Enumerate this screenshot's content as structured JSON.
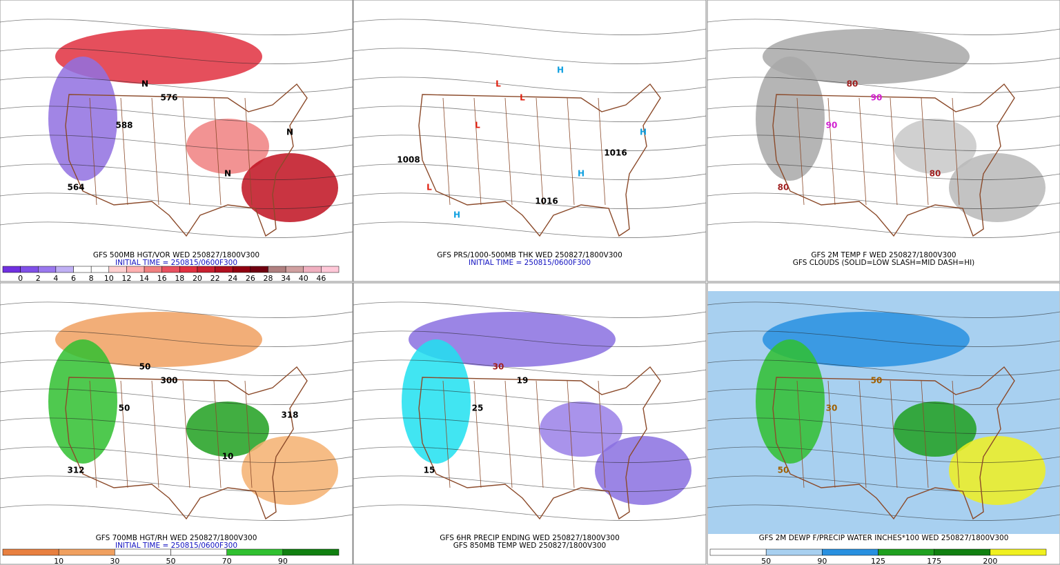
{
  "panels": [
    {
      "caption": [
        "GFS 500MB HGT/VOR WED 250827/1800V300",
        "INITIAL TIME = 250815/0600F300"
      ],
      "caption_colors": [
        "#000000",
        "#1010c0"
      ],
      "background": "#ffffff",
      "blobs": [
        "#e03040",
        "#f08080",
        "#9070e0",
        "#c01020"
      ],
      "map_labels": [
        {
          "text": "564",
          "color": "#000000"
        },
        {
          "text": "576",
          "color": "#000000"
        },
        {
          "text": "588",
          "color": "#000000"
        },
        {
          "text": "N",
          "color": "#000000"
        },
        {
          "text": "N",
          "color": "#000000"
        },
        {
          "text": "N",
          "color": "#000000"
        }
      ],
      "colorbar": {
        "labels": [
          0,
          2,
          4,
          6,
          8,
          10,
          12,
          14,
          16,
          18,
          20,
          22,
          24,
          26,
          28,
          34,
          40,
          46
        ],
        "colors": [
          "#7030e0",
          "#8050e8",
          "#9a78ee",
          "#c0b0f4",
          "#ffffff",
          "#ffffff",
          "#ffd0d0",
          "#ffb0b0",
          "#f08080",
          "#e85060",
          "#e03040",
          "#c82030",
          "#b01020",
          "#900010",
          "#700010",
          "#b08080",
          "#d0a0a0",
          "#f0b0c0",
          "#ffc8d8"
        ]
      }
    },
    {
      "caption": [
        "GFS PRS/1000-500MB THK WED 250827/1800V300",
        "INITIAL TIME = 250815/0600F300"
      ],
      "caption_colors": [
        "#000000",
        "#1010c0"
      ],
      "background": "#ffffff",
      "blobs": [],
      "map_labels": [
        {
          "text": "L",
          "color": "#e02010"
        },
        {
          "text": "L",
          "color": "#e02010"
        },
        {
          "text": "L",
          "color": "#e02010"
        },
        {
          "text": "L",
          "color": "#e02010"
        },
        {
          "text": "H",
          "color": "#10a0e0"
        },
        {
          "text": "H",
          "color": "#10a0e0"
        },
        {
          "text": "H",
          "color": "#10a0e0"
        },
        {
          "text": "H",
          "color": "#10a0e0"
        },
        {
          "text": "1008",
          "color": "#000000"
        },
        {
          "text": "1016",
          "color": "#000000"
        },
        {
          "text": "1016",
          "color": "#000000"
        }
      ]
    },
    {
      "caption": [
        "GFS 2M TEMP F WED 250827/1800V300",
        "GFS CLOUDS (SOLID=LOW SLASH=MID DASH=HI)"
      ],
      "caption_colors": [
        "#000000",
        "#000000"
      ],
      "background": "#ffffff",
      "blobs": [
        "#a8a8a8",
        "#c8c8c8",
        "#a8a8a8",
        "#b8b8b8"
      ],
      "map_labels": [
        {
          "text": "80",
          "color": "#a02020"
        },
        {
          "text": "90",
          "color": "#d020d0"
        },
        {
          "text": "90",
          "color": "#d020d0"
        },
        {
          "text": "80",
          "color": "#a02020"
        },
        {
          "text": "80",
          "color": "#a02020"
        }
      ]
    },
    {
      "caption": [
        "GFS 700MB HGT/RH WED 250827/1800V300",
        "INITIAL TIME = 250815/0600F300"
      ],
      "caption_colors": [
        "#000000",
        "#1010c0"
      ],
      "background": "#ffffff",
      "blobs": [
        "#f0a060",
        "#20a020",
        "#30c030",
        "#f4b070"
      ],
      "map_labels": [
        {
          "text": "312",
          "color": "#000000"
        },
        {
          "text": "300",
          "color": "#000000"
        },
        {
          "text": "50",
          "color": "#000000"
        },
        {
          "text": "50",
          "color": "#000000"
        },
        {
          "text": "10",
          "color": "#000000"
        },
        {
          "text": "318",
          "color": "#000000"
        }
      ],
      "colorbar": {
        "labels": [
          10,
          30,
          50,
          70,
          90
        ],
        "colors": [
          "#e88040",
          "#f0a060",
          "#ffffff",
          "#ffffff",
          "#30c030",
          "#108010"
        ]
      }
    },
    {
      "caption": [
        "GFS 6HR PRECIP ENDING WED 250827/1800V300",
        "GFS 850MB TEMP WED 250827/1800V300"
      ],
      "caption_colors": [
        "#000000",
        "#000000"
      ],
      "background": "#ffffff",
      "blobs": [
        "#8a70e0",
        "#9a80e8",
        "#20e0f0",
        "#8a70e0"
      ],
      "map_labels": [
        {
          "text": "15",
          "color": "#000000"
        },
        {
          "text": "19",
          "color": "#000000"
        },
        {
          "text": "25",
          "color": "#000000"
        },
        {
          "text": "30",
          "color": "#a02020"
        }
      ]
    },
    {
      "caption": [
        "GFS 2M DEWP F/PRECIP WATER INCHES*100 WED 250827/1800V300"
      ],
      "caption_colors": [
        "#000000"
      ],
      "background": "#a8d0f0",
      "blobs": [
        "#2890e0",
        "#20a020",
        "#30c030",
        "#f0f020"
      ],
      "map_labels": [
        {
          "text": "50",
          "color": "#a06000"
        },
        {
          "text": "50",
          "color": "#a06000"
        },
        {
          "text": "30",
          "color": "#a06000"
        }
      ],
      "colorbar": {
        "labels": [
          50,
          90,
          125,
          175,
          200
        ],
        "colors": [
          "#ffffff",
          "#a8d0f0",
          "#2890e0",
          "#20a020",
          "#108010",
          "#f0f020"
        ]
      }
    }
  ]
}
